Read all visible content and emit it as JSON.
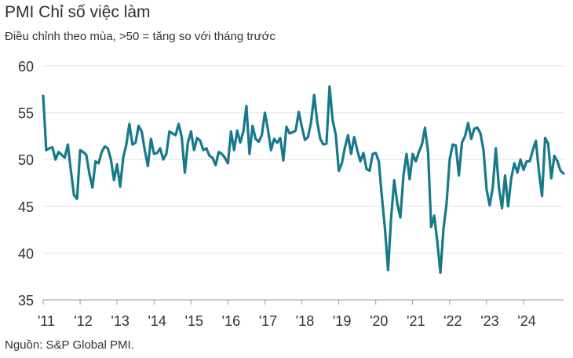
{
  "title": "PMI Chỉ số việc làm",
  "subtitle": "Điều chỉnh theo mùa, >50 = tăng so với tháng trước",
  "source": "Nguồn: S&P Global PMI.",
  "colors": {
    "line": "#167a8b",
    "grid": "#e3e3e3",
    "axis": "#9a9a9a"
  },
  "chart_data": {
    "type": "line",
    "title": "PMI Chỉ số việc làm",
    "subtitle": "Điều chỉnh theo mùa, >50 = tăng so với tháng trước",
    "xlabel": "",
    "ylabel": "",
    "ylim": [
      35,
      60
    ],
    "yticks": [
      35,
      40,
      45,
      50,
      55,
      60
    ],
    "xtick_labels": [
      "'11",
      "'12",
      "'13",
      "'14",
      "'15",
      "'16",
      "'17",
      "'18",
      "'19",
      "'20",
      "'21",
      "'22",
      "'23",
      "'24"
    ],
    "x_start": "2011-01",
    "frequency": "monthly",
    "grid": true,
    "legend": "none",
    "series": [
      {
        "values": [
          56.8,
          51.0,
          51.2,
          51.3,
          50.0,
          50.8,
          50.5,
          50.2,
          51.6,
          48.8,
          46.2,
          45.8,
          51.0,
          50.8,
          50.5,
          48.5,
          47.0,
          49.8,
          49.6,
          50.8,
          51.4,
          51.2,
          50.0,
          47.8,
          49.5,
          47.1,
          50.2,
          51.6,
          53.8,
          51.6,
          51.8,
          53.6,
          53.0,
          51.0,
          49.3,
          52.2,
          50.6,
          50.7,
          51.2,
          50.0,
          50.6,
          53.0,
          52.8,
          52.6,
          53.8,
          52.4,
          48.6,
          51.8,
          53.0,
          51.0,
          52.3,
          52.0,
          51.0,
          51.2,
          50.4,
          50.2,
          49.4,
          50.8,
          50.6,
          50.2,
          49.6,
          53.0,
          51.0,
          53.1,
          51.8,
          53.0,
          55.7,
          50.6,
          53.6,
          52.2,
          51.9,
          52.6,
          55.0,
          53.2,
          51.0,
          52.2,
          51.8,
          52.3,
          49.9,
          53.5,
          52.8,
          52.9,
          53.1,
          55.1,
          53.5,
          52.1,
          52.4,
          54.0,
          56.9,
          54.0,
          52.2,
          51.6,
          51.7,
          57.8,
          54.2,
          52.7,
          48.8,
          49.6,
          51.3,
          52.6,
          50.6,
          52.4,
          51.0,
          49.8,
          50.7,
          49.0,
          48.8,
          50.6,
          50.7,
          49.8,
          46.0,
          42.6,
          38.2,
          43.8,
          47.8,
          45.3,
          43.8,
          48.3,
          50.6,
          47.9,
          50.6,
          49.8,
          50.8,
          51.6,
          53.4,
          50.8,
          42.8,
          44.0,
          41.2,
          37.9,
          42.6,
          45.3,
          50.0,
          51.6,
          51.5,
          48.3,
          51.8,
          52.5,
          53.9,
          52.2,
          53.3,
          53.4,
          52.8,
          51.0,
          46.8,
          45.1,
          47.0,
          51.2,
          47.0,
          44.8,
          48.3,
          45.0,
          48.0,
          49.6,
          48.6,
          50.0,
          48.9,
          49.8,
          49.8,
          51.0,
          52.0,
          48.7,
          46.1,
          52.3,
          51.7,
          48.0,
          50.4,
          49.8,
          48.8,
          48.5
        ]
      }
    ]
  }
}
